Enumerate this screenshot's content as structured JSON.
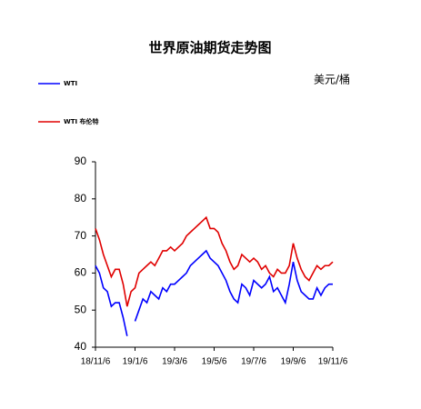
{
  "chart_data": {
    "type": "line",
    "title": "世界原油期货走势图",
    "unit": "美元/桶",
    "categories": [
      "18/11/6",
      null,
      null,
      null,
      null,
      null,
      null,
      null,
      null,
      null,
      "19/1/6",
      null,
      null,
      null,
      null,
      null,
      null,
      null,
      null,
      null,
      "19/3/6",
      null,
      null,
      null,
      null,
      null,
      null,
      null,
      null,
      null,
      "19/5/6",
      null,
      null,
      null,
      null,
      null,
      null,
      null,
      null,
      null,
      "19/7/6",
      null,
      null,
      null,
      null,
      null,
      null,
      null,
      null,
      null,
      "19/9/6",
      null,
      null,
      null,
      null,
      null,
      null,
      null,
      null,
      null,
      "19/11/6"
    ],
    "series": [
      {
        "name": "WTI",
        "color": "#0000ff",
        "values": [
          62,
          60,
          56,
          55,
          51,
          52,
          52,
          48,
          43,
          null,
          47,
          50,
          53,
          52,
          55,
          54,
          53,
          56,
          55,
          57,
          57,
          58,
          59,
          60,
          62,
          63,
          64,
          65,
          66,
          64,
          63,
          62,
          60,
          58,
          55,
          53,
          52,
          57,
          56,
          54,
          58,
          57,
          56,
          57,
          59,
          55,
          56,
          54,
          52,
          57,
          63,
          58,
          55,
          54,
          53,
          53,
          56,
          54,
          56,
          57,
          57
        ]
      },
      {
        "name": "WTI 布伦特",
        "color": "#e00000",
        "values": [
          72,
          69,
          65,
          62,
          59,
          61,
          61,
          57,
          51,
          55,
          56,
          60,
          61,
          62,
          63,
          62,
          64,
          66,
          66,
          67,
          66,
          67,
          68,
          70,
          71,
          72,
          73,
          74,
          75,
          72,
          72,
          71,
          68,
          66,
          63,
          61,
          62,
          65,
          64,
          63,
          64,
          63,
          61,
          62,
          60,
          59,
          61,
          60,
          60,
          62,
          68,
          64,
          61,
          59,
          58,
          60,
          62,
          61,
          62,
          62,
          63
        ]
      }
    ],
    "ylim": [
      40,
      90
    ],
    "yticks": [
      40,
      50,
      60,
      70,
      80,
      90
    ]
  }
}
